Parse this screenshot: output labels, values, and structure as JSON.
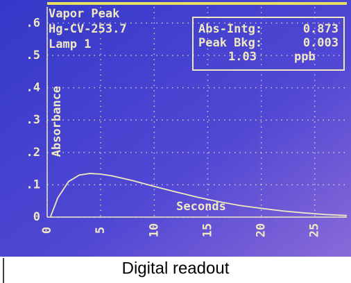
{
  "chart_data": {
    "type": "line",
    "annotations": [
      "Vapor Peak",
      "Hg-CV-253.7",
      "Lamp 1"
    ],
    "readout": [
      [
        "Abs-Intg:",
        "0.873"
      ],
      [
        "Peak Bkg:",
        "0.003"
      ],
      [
        "1.03",
        "ppb"
      ]
    ],
    "x_label": "Seconds",
    "y_label": "Absorbance",
    "x": [
      0.3,
      1,
      2,
      3,
      4,
      5,
      6,
      8,
      10,
      12,
      14,
      16,
      18,
      20,
      22,
      24,
      26,
      28
    ],
    "series": [
      {
        "color": "#f0e8c0",
        "values": [
          0,
          0.06,
          0.11,
          0.13,
          0.135,
          0.133,
          0.128,
          0.113,
          0.095,
          0.078,
          0.062,
          0.048,
          0.036,
          0.027,
          0.019,
          0.013,
          0.008,
          0.005
        ]
      }
    ],
    "xlim": [
      0,
      28
    ],
    "ylim": [
      0,
      0.65
    ],
    "xticks": [
      0,
      5,
      10,
      15,
      20,
      25
    ],
    "yticks": [
      0,
      {
        "value": 0.1,
        "label": ".1"
      },
      {
        "value": 0.2,
        "label": ".2"
      },
      {
        "value": 0.3,
        "label": ".3"
      },
      {
        "value": 0.4,
        "label": ".4"
      },
      {
        "value": 0.5,
        "label": ".5"
      },
      {
        "value": 0.6,
        "label": ".6"
      }
    ],
    "grid": true
  },
  "caption": "Digital readout"
}
